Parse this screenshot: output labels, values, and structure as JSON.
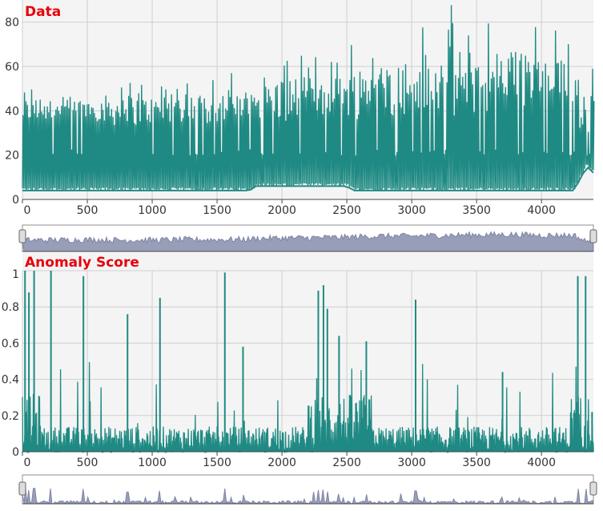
{
  "colors": {
    "series": "#1f8a83",
    "navigator": "#7f86a6",
    "plot_bg": "#f4f4f4",
    "grid": "#cfcfcf",
    "title": "#e8000b"
  },
  "chart_data": [
    {
      "type": "line",
      "title": "Data",
      "xlim": [
        0,
        4400
      ],
      "ylim": [
        0,
        90
      ],
      "x_ticks": [
        0,
        500,
        1000,
        1500,
        2000,
        2500,
        3000,
        3500,
        4000
      ],
      "y_ticks": [
        0,
        20,
        40,
        60,
        80
      ],
      "grid": true,
      "navigator": true,
      "series": [
        {
          "x": [
            0,
            250,
            500,
            750,
            1000,
            1250,
            1500,
            1750,
            1800,
            2000,
            2250,
            2500,
            2550,
            2750,
            3000,
            3250,
            3500,
            3750,
            4000,
            4250,
            4350,
            4400
          ],
          "low": [
            4,
            4,
            4,
            4,
            4,
            4,
            4,
            4,
            6,
            6,
            6,
            6,
            4,
            4,
            4,
            4,
            4,
            4,
            4,
            4,
            15,
            12
          ],
          "mid": [
            21,
            21,
            21,
            21,
            21,
            21,
            21,
            21,
            21,
            21,
            21,
            21,
            21,
            21,
            21,
            21,
            21,
            21,
            21,
            21,
            20,
            21
          ],
          "base": [
            40,
            40,
            41,
            40,
            40,
            41,
            41,
            42,
            44,
            45,
            46,
            47,
            48,
            50,
            50,
            52,
            53,
            54,
            52,
            52,
            35,
            55
          ],
          "peak": [
            52,
            49,
            52,
            57,
            53,
            55,
            57,
            58,
            60,
            68,
            66,
            67,
            78,
            75,
            82,
            90,
            85,
            82,
            80,
            75,
            80,
            82
          ]
        }
      ]
    },
    {
      "type": "line",
      "title": "Anomaly Score",
      "xlim": [
        0,
        4400
      ],
      "ylim": [
        0,
        1
      ],
      "x_ticks": [
        0,
        500,
        1000,
        1500,
        2000,
        2500,
        3000,
        3500,
        4000
      ],
      "y_ticks": [
        0,
        0.2,
        0.4,
        0.6,
        0.8,
        1
      ],
      "grid": true,
      "navigator": true,
      "spikes": [
        {
          "x": 20,
          "y": 1.0
        },
        {
          "x": 50,
          "y": 0.88
        },
        {
          "x": 90,
          "y": 1.0
        },
        {
          "x": 220,
          "y": 1.0
        },
        {
          "x": 470,
          "y": 0.97
        },
        {
          "x": 810,
          "y": 0.76
        },
        {
          "x": 1060,
          "y": 0.85
        },
        {
          "x": 1560,
          "y": 0.99
        },
        {
          "x": 1700,
          "y": 0.58
        },
        {
          "x": 2280,
          "y": 0.89
        },
        {
          "x": 2320,
          "y": 0.92
        },
        {
          "x": 2350,
          "y": 0.79
        },
        {
          "x": 2440,
          "y": 0.64
        },
        {
          "x": 2650,
          "y": 0.61
        },
        {
          "x": 3030,
          "y": 0.84
        },
        {
          "x": 3700,
          "y": 0.44
        },
        {
          "x": 4280,
          "y": 0.97
        },
        {
          "x": 4340,
          "y": 0.97
        },
        {
          "x": 4390,
          "y": 0.22
        }
      ]
    }
  ],
  "x_tick_labels": [
    "0",
    "500",
    "1000",
    "1500",
    "2000",
    "2500",
    "3000",
    "3500",
    "4000"
  ],
  "y1_tick_labels": [
    "0",
    "20",
    "40",
    "60",
    "80"
  ],
  "y2_tick_labels": [
    "0",
    "0.2",
    "0.4",
    "0.6",
    "0.8",
    "1"
  ]
}
